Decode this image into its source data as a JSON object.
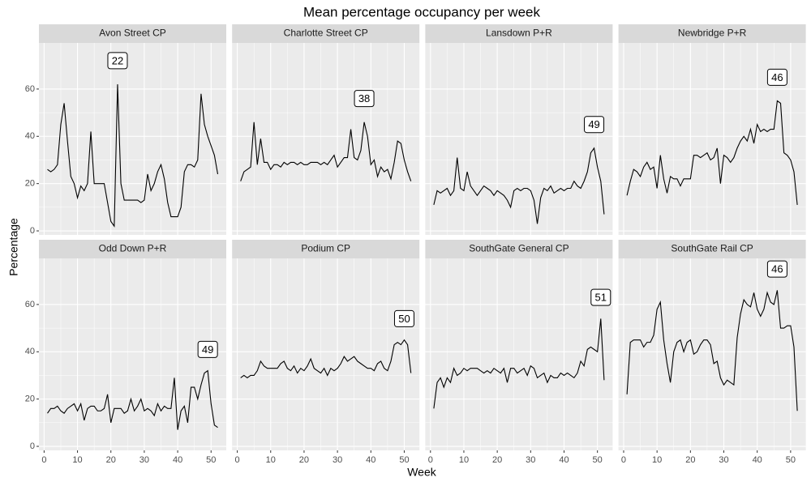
{
  "title": "Mean percentage occupancy per week",
  "x_label": "Week",
  "y_label": "Percentage",
  "chart_data": [
    {
      "type": "line",
      "title": "Avon Street CP",
      "color": "#000000",
      "x": [
        1,
        2,
        3,
        4,
        5,
        6,
        7,
        8,
        9,
        10,
        11,
        12,
        13,
        14,
        15,
        16,
        17,
        18,
        19,
        20,
        21,
        22,
        23,
        24,
        25,
        26,
        27,
        28,
        29,
        30,
        31,
        32,
        33,
        34,
        35,
        36,
        37,
        38,
        39,
        40,
        41,
        42,
        43,
        44,
        45,
        46,
        47,
        48,
        49,
        50,
        51,
        52
      ],
      "values": [
        26,
        25,
        26,
        28,
        45,
        54,
        38,
        23,
        20,
        14,
        19,
        17,
        20,
        42,
        20,
        20,
        20,
        20,
        12,
        4,
        2,
        62,
        20,
        13,
        13,
        13,
        13,
        13,
        12,
        13,
        24,
        17,
        20,
        25,
        28,
        22,
        12,
        6,
        6,
        6,
        10,
        25,
        28,
        28,
        27,
        30,
        58,
        45,
        40,
        36,
        32,
        24
      ],
      "annotation": {
        "x": 22,
        "y": 72
      },
      "xlim": [
        -1.55,
        54.55
      ],
      "ylim": [
        -1.7,
        79.5
      ],
      "xticks": [
        0,
        10,
        20,
        30,
        40,
        50
      ],
      "yticks": [
        0,
        20,
        40,
        60
      ],
      "grid": true
    },
    {
      "type": "line",
      "title": "Charlotte Street CP",
      "color": "#000000",
      "x": [
        1,
        2,
        3,
        4,
        5,
        6,
        7,
        8,
        9,
        10,
        11,
        12,
        13,
        14,
        15,
        16,
        17,
        18,
        19,
        20,
        21,
        22,
        23,
        24,
        25,
        26,
        27,
        28,
        29,
        30,
        31,
        32,
        33,
        34,
        35,
        36,
        37,
        38,
        39,
        40,
        41,
        42,
        43,
        44,
        45,
        46,
        47,
        48,
        49,
        50,
        51,
        52
      ],
      "values": [
        21,
        25,
        26,
        27,
        46,
        28,
        39,
        29,
        29,
        26,
        28,
        28,
        27,
        29,
        28,
        29,
        29,
        28,
        29,
        28,
        28,
        29,
        29,
        29,
        28,
        29,
        28,
        30,
        32,
        27,
        29,
        31,
        31,
        43,
        31,
        30,
        34,
        46,
        40,
        28,
        30,
        23,
        27,
        25,
        26,
        22,
        29,
        38,
        37,
        30,
        25,
        21
      ],
      "annotation": {
        "x": 38,
        "y": 56
      },
      "xlim": [
        -1.55,
        54.55
      ],
      "ylim": [
        -1.7,
        79.5
      ],
      "xticks": [
        0,
        10,
        20,
        30,
        40,
        50
      ],
      "yticks": [
        0,
        20,
        40,
        60
      ],
      "grid": true
    },
    {
      "type": "line",
      "title": "Lansdown P+R",
      "color": "#000000",
      "x": [
        1,
        2,
        3,
        4,
        5,
        6,
        7,
        8,
        9,
        10,
        11,
        12,
        13,
        14,
        15,
        16,
        17,
        18,
        19,
        20,
        21,
        22,
        23,
        24,
        25,
        26,
        27,
        28,
        29,
        30,
        31,
        32,
        33,
        34,
        35,
        36,
        37,
        38,
        39,
        40,
        41,
        42,
        43,
        44,
        45,
        46,
        47,
        48,
        49,
        50,
        51,
        52
      ],
      "values": [
        11,
        17,
        16,
        17,
        18,
        15,
        17,
        31,
        18,
        17,
        25,
        19,
        17,
        15,
        17,
        19,
        18,
        17,
        15,
        17,
        16,
        15,
        13,
        10,
        17,
        18,
        17,
        18,
        18,
        17,
        13,
        3,
        14,
        18,
        17,
        19,
        16,
        17,
        18,
        17,
        18,
        18,
        21,
        19,
        18,
        21,
        25,
        33,
        35,
        27,
        21,
        7
      ],
      "annotation": {
        "x": 49,
        "y": 45
      },
      "xlim": [
        -1.55,
        54.55
      ],
      "ylim": [
        -1.7,
        79.5
      ],
      "xticks": [
        0,
        10,
        20,
        30,
        40,
        50
      ],
      "yticks": [
        0,
        20,
        40,
        60
      ],
      "grid": true
    },
    {
      "type": "line",
      "title": "Newbridge P+R",
      "color": "#000000",
      "x": [
        1,
        2,
        3,
        4,
        5,
        6,
        7,
        8,
        9,
        10,
        11,
        12,
        13,
        14,
        15,
        16,
        17,
        18,
        19,
        20,
        21,
        22,
        23,
        24,
        25,
        26,
        27,
        28,
        29,
        30,
        31,
        32,
        33,
        34,
        35,
        36,
        37,
        38,
        39,
        40,
        41,
        42,
        43,
        44,
        45,
        46,
        47,
        48,
        49,
        50,
        51,
        52
      ],
      "values": [
        15,
        21,
        26,
        25,
        23,
        27,
        29,
        26,
        27,
        18,
        32,
        22,
        16,
        23,
        22,
        22,
        19,
        22,
        22,
        22,
        32,
        32,
        31,
        32,
        33,
        30,
        31,
        35,
        20,
        32,
        31,
        29,
        31,
        35,
        38,
        40,
        38,
        43,
        37,
        45,
        42,
        43,
        42,
        43,
        43,
        55,
        54,
        33,
        32,
        30,
        25,
        11
      ],
      "annotation": {
        "x": 46,
        "y": 65
      },
      "xlim": [
        -1.55,
        54.55
      ],
      "ylim": [
        -1.7,
        79.5
      ],
      "xticks": [
        0,
        10,
        20,
        30,
        40,
        50
      ],
      "yticks": [
        0,
        20,
        40,
        60
      ],
      "grid": true
    },
    {
      "type": "line",
      "title": "Odd Down P+R",
      "color": "#000000",
      "x": [
        1,
        2,
        3,
        4,
        5,
        6,
        7,
        8,
        9,
        10,
        11,
        12,
        13,
        14,
        15,
        16,
        17,
        18,
        19,
        20,
        21,
        22,
        23,
        24,
        25,
        26,
        27,
        28,
        29,
        30,
        31,
        32,
        33,
        34,
        35,
        36,
        37,
        38,
        39,
        40,
        41,
        42,
        43,
        44,
        45,
        46,
        47,
        48,
        49,
        50,
        51,
        52
      ],
      "values": [
        14,
        16,
        16,
        17,
        15,
        14,
        16,
        17,
        18,
        15,
        18,
        11,
        16,
        17,
        17,
        15,
        15,
        16,
        22,
        10,
        16,
        16,
        16,
        14,
        15,
        20,
        15,
        17,
        20,
        15,
        16,
        15,
        13,
        18,
        15,
        17,
        16,
        16,
        29,
        7,
        15,
        17,
        10,
        25,
        25,
        20,
        26,
        31,
        32,
        18,
        9,
        8
      ],
      "annotation": {
        "x": 49,
        "y": 41
      },
      "xlim": [
        -1.55,
        54.55
      ],
      "ylim": [
        -1.7,
        79.5
      ],
      "xticks": [
        0,
        10,
        20,
        30,
        40,
        50
      ],
      "yticks": [
        0,
        20,
        40,
        60
      ],
      "grid": true
    },
    {
      "type": "line",
      "title": "Podium CP",
      "color": "#000000",
      "x": [
        1,
        2,
        3,
        4,
        5,
        6,
        7,
        8,
        9,
        10,
        11,
        12,
        13,
        14,
        15,
        16,
        17,
        18,
        19,
        20,
        21,
        22,
        23,
        24,
        25,
        26,
        27,
        28,
        29,
        30,
        31,
        32,
        33,
        34,
        35,
        36,
        37,
        38,
        39,
        40,
        41,
        42,
        43,
        44,
        45,
        46,
        47,
        48,
        49,
        50,
        51,
        52
      ],
      "values": [
        29,
        30,
        29,
        30,
        30,
        32,
        36,
        34,
        33,
        33,
        33,
        33,
        35,
        36,
        33,
        32,
        34,
        31,
        33,
        32,
        34,
        37,
        33,
        32,
        31,
        33,
        30,
        33,
        32,
        33,
        35,
        38,
        36,
        37,
        38,
        36,
        35,
        34,
        33,
        33,
        32,
        35,
        36,
        33,
        32,
        36,
        43,
        44,
        43,
        45,
        43,
        31
      ],
      "annotation": {
        "x": 50,
        "y": 54
      },
      "xlim": [
        -1.55,
        54.55
      ],
      "ylim": [
        -1.7,
        79.5
      ],
      "xticks": [
        0,
        10,
        20,
        30,
        40,
        50
      ],
      "yticks": [
        0,
        20,
        40,
        60
      ],
      "grid": true
    },
    {
      "type": "line",
      "title": "SouthGate General CP",
      "color": "#000000",
      "x": [
        1,
        2,
        3,
        4,
        5,
        6,
        7,
        8,
        9,
        10,
        11,
        12,
        13,
        14,
        15,
        16,
        17,
        18,
        19,
        20,
        21,
        22,
        23,
        24,
        25,
        26,
        27,
        28,
        29,
        30,
        31,
        32,
        33,
        34,
        35,
        36,
        37,
        38,
        39,
        40,
        41,
        42,
        43,
        44,
        45,
        46,
        47,
        48,
        49,
        50,
        51,
        52
      ],
      "values": [
        16,
        27,
        29,
        25,
        29,
        27,
        33,
        30,
        31,
        33,
        32,
        33,
        33,
        33,
        32,
        31,
        32,
        31,
        33,
        32,
        31,
        33,
        27,
        33,
        33,
        31,
        32,
        33,
        30,
        34,
        33,
        29,
        30,
        31,
        27,
        30,
        29,
        29,
        31,
        30,
        31,
        30,
        29,
        31,
        36,
        34,
        41,
        42,
        41,
        40,
        54,
        28
      ],
      "annotation": {
        "x": 51,
        "y": 63
      },
      "xlim": [
        -1.55,
        54.55
      ],
      "ylim": [
        -1.7,
        79.5
      ],
      "xticks": [
        0,
        10,
        20,
        30,
        40,
        50
      ],
      "yticks": [
        0,
        20,
        40,
        60
      ],
      "grid": true
    },
    {
      "type": "line",
      "title": "SouthGate Rail CP",
      "color": "#000000",
      "x": [
        1,
        2,
        3,
        4,
        5,
        6,
        7,
        8,
        9,
        10,
        11,
        12,
        13,
        14,
        15,
        16,
        17,
        18,
        19,
        20,
        21,
        22,
        23,
        24,
        25,
        26,
        27,
        28,
        29,
        30,
        31,
        32,
        33,
        34,
        35,
        36,
        37,
        38,
        39,
        40,
        41,
        42,
        43,
        44,
        45,
        46,
        47,
        48,
        49,
        50,
        51,
        52
      ],
      "values": [
        22,
        44,
        45,
        45,
        45,
        42,
        44,
        44,
        47,
        58,
        61,
        45,
        35,
        27,
        40,
        44,
        45,
        40,
        44,
        45,
        39,
        40,
        43,
        45,
        45,
        43,
        35,
        36,
        29,
        26,
        28,
        27,
        26,
        46,
        56,
        62,
        60,
        59,
        65,
        58,
        55,
        58,
        65,
        61,
        60,
        66,
        50,
        50,
        51,
        51,
        42,
        15
      ],
      "annotation": {
        "x": 46,
        "y": 75
      },
      "xlim": [
        -1.55,
        54.55
      ],
      "ylim": [
        -1.7,
        79.5
      ],
      "xticks": [
        0,
        10,
        20,
        30,
        40,
        50
      ],
      "yticks": [
        0,
        20,
        40,
        60
      ],
      "grid": true
    }
  ]
}
